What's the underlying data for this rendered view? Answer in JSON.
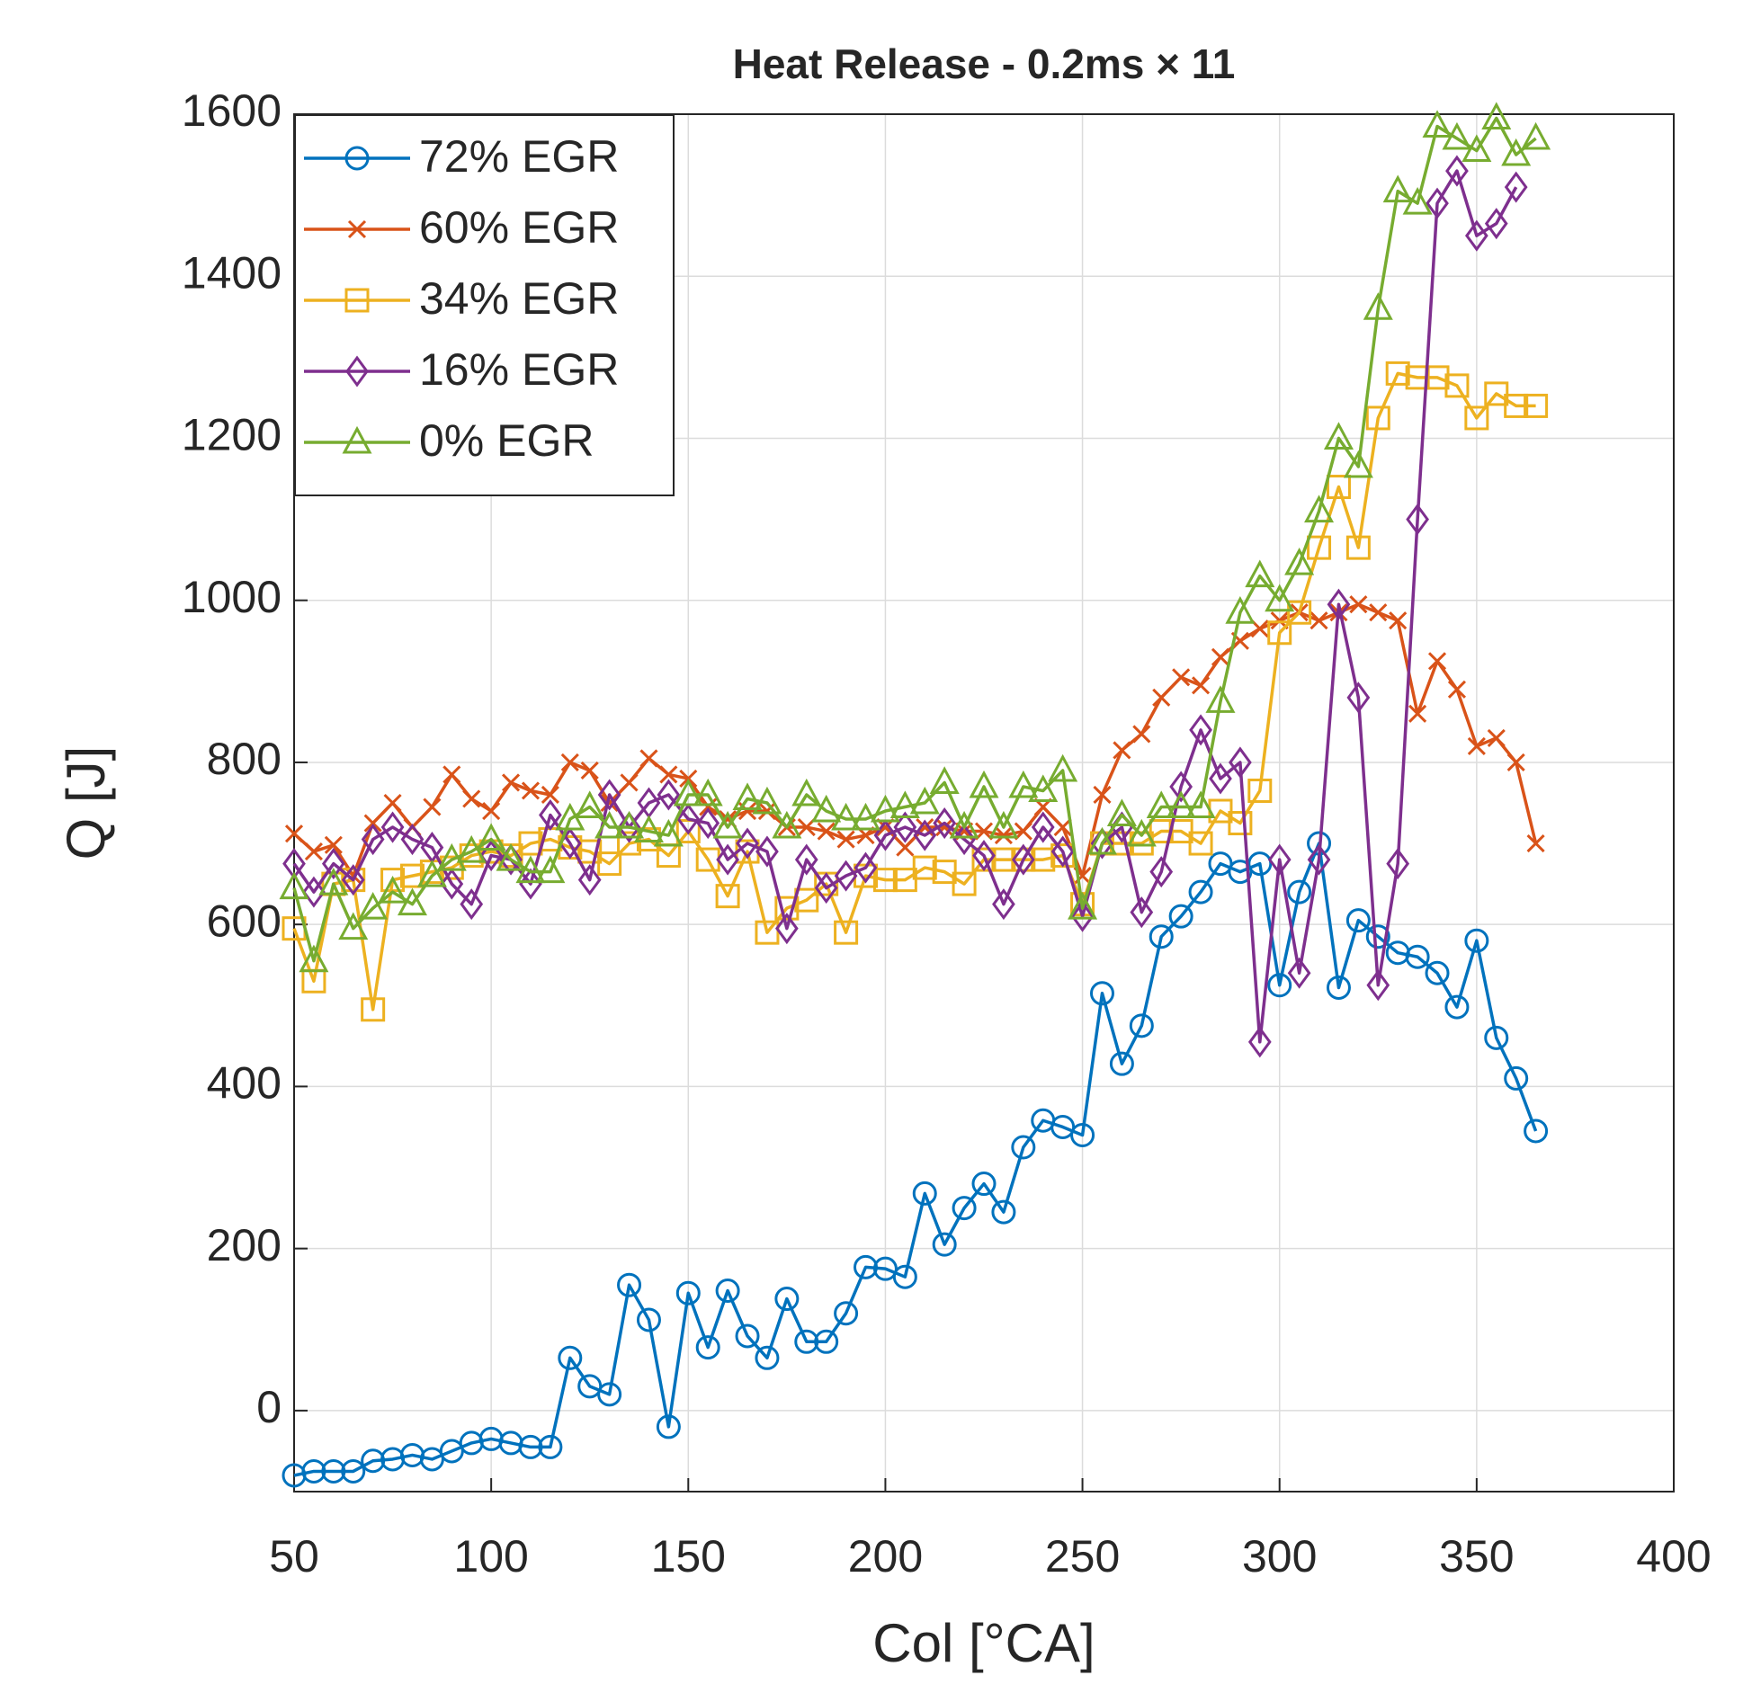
{
  "chart_data": {
    "type": "line",
    "title": "Heat Release - 0.2ms × 11",
    "xlabel": "Col [°CA]",
    "ylabel": "Q [J]",
    "x": [
      50,
      55,
      60,
      65,
      70,
      75,
      80,
      85,
      90,
      95,
      100,
      105,
      110,
      115,
      120,
      125,
      130,
      135,
      140,
      145,
      150,
      155,
      160,
      165,
      170,
      175,
      180,
      185,
      190,
      195,
      200,
      205,
      210,
      215,
      220,
      225,
      230,
      235,
      240,
      245,
      250,
      255,
      260,
      265,
      270,
      275,
      280,
      285,
      290,
      295,
      300,
      305,
      310,
      315,
      320,
      325,
      330,
      335,
      340,
      345,
      350,
      355,
      360,
      365
    ],
    "series": [
      {
        "name": "72% EGR",
        "color": "#0072BD",
        "marker": "circle",
        "values": [
          -80,
          -75,
          -75,
          -75,
          -62,
          -60,
          -55,
          -60,
          -50,
          -40,
          -35,
          -40,
          -45,
          -45,
          65,
          30,
          20,
          155,
          112,
          -20,
          145,
          78,
          148,
          92,
          65,
          138,
          85,
          85,
          120,
          177,
          175,
          165,
          268,
          205,
          250,
          280,
          245,
          325,
          358,
          350,
          340,
          515,
          428,
          475,
          585,
          610,
          640,
          675,
          665,
          675,
          525,
          640,
          700,
          522,
          605,
          585,
          565,
          560,
          540,
          498,
          580,
          460,
          410,
          345
        ]
      },
      {
        "name": "60% EGR",
        "color": "#D95319",
        "marker": "x",
        "values": [
          712,
          690,
          698,
          660,
          725,
          750,
          720,
          745,
          785,
          755,
          740,
          775,
          765,
          760,
          800,
          790,
          750,
          775,
          805,
          785,
          780,
          745,
          730,
          740,
          740,
          720,
          720,
          715,
          705,
          710,
          720,
          695,
          720,
          720,
          715,
          715,
          710,
          715,
          745,
          720,
          660,
          760,
          815,
          835,
          880,
          905,
          895,
          930,
          950,
          965,
          975,
          985,
          975,
          985,
          995,
          985,
          975,
          860,
          925,
          890,
          820,
          830,
          800,
          700
        ]
      },
      {
        "name": "34% EGR",
        "color": "#EDB120",
        "marker": "square",
        "values": [
          595,
          530,
          650,
          655,
          495,
          655,
          660,
          665,
          670,
          685,
          690,
          685,
          700,
          705,
          695,
          690,
          675,
          700,
          705,
          685,
          715,
          680,
          635,
          690,
          590,
          620,
          630,
          650,
          590,
          660,
          655,
          655,
          670,
          665,
          650,
          680,
          680,
          680,
          680,
          685,
          625,
          700,
          700,
          700,
          715,
          715,
          700,
          740,
          725,
          765,
          960,
          985,
          1065,
          1140,
          1065,
          1225,
          1280,
          1275,
          1275,
          1265,
          1225,
          1255,
          1240,
          1240
        ]
      },
      {
        "name": "16% EGR",
        "color": "#7E2F8E",
        "marker": "diamond",
        "values": [
          675,
          640,
          675,
          655,
          705,
          720,
          705,
          695,
          650,
          625,
          685,
          680,
          650,
          735,
          700,
          655,
          760,
          720,
          750,
          760,
          730,
          725,
          680,
          700,
          690,
          595,
          680,
          645,
          660,
          670,
          710,
          720,
          710,
          725,
          705,
          685,
          625,
          680,
          720,
          690,
          610,
          700,
          720,
          615,
          665,
          770,
          840,
          780,
          800,
          455,
          680,
          540,
          680,
          995,
          880,
          525,
          675,
          1100,
          1490,
          1530,
          1450,
          1465,
          1510,
          null
        ]
      },
      {
        "name": "0% EGR",
        "color": "#77AC30",
        "marker": "triangle",
        "values": [
          645,
          555,
          650,
          595,
          620,
          640,
          625,
          660,
          680,
          690,
          705,
          680,
          665,
          665,
          730,
          745,
          720,
          720,
          715,
          710,
          760,
          760,
          720,
          755,
          750,
          720,
          760,
          740,
          730,
          730,
          740,
          745,
          750,
          775,
          720,
          770,
          720,
          770,
          765,
          790,
          620,
          700,
          735,
          710,
          745,
          745,
          745,
          875,
          985,
          1030,
          1000,
          1045,
          1110,
          1200,
          1165,
          1360,
          1505,
          1490,
          1585,
          1570,
          1555,
          1595,
          1550,
          1570
        ]
      }
    ],
    "xlim": [
      50,
      400
    ],
    "xticks": [
      50,
      100,
      150,
      200,
      250,
      300,
      350,
      400
    ],
    "ylim": [
      -100,
      1600
    ],
    "yticks": [
      0,
      200,
      400,
      600,
      800,
      1000,
      1200,
      1400,
      1600
    ],
    "grid": true,
    "legend": "upper left"
  }
}
